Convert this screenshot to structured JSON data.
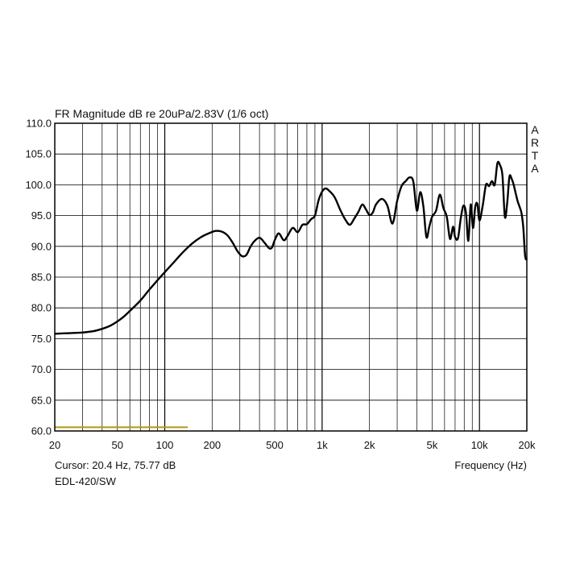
{
  "chart_data": {
    "type": "line",
    "title": "FR Magnitude dB re 20uPa/2.83V (1/6 oct)",
    "xlabel": "Frequency (Hz)",
    "ylabel": "",
    "x_scale": "log",
    "xlim": [
      20,
      20000
    ],
    "ylim": [
      60,
      110
    ],
    "grid": true,
    "y_ticks": [
      "110.0",
      "105.0",
      "100.0",
      "95.0",
      "90.0",
      "85.0",
      "80.0",
      "75.0",
      "70.0",
      "65.0",
      "60.0"
    ],
    "x_tick_labels": [
      {
        "value": 20,
        "label": "20"
      },
      {
        "value": 50,
        "label": "50"
      },
      {
        "value": 100,
        "label": "100"
      },
      {
        "value": 200,
        "label": "200"
      },
      {
        "value": 500,
        "label": "500"
      },
      {
        "value": 1000,
        "label": "1k"
      },
      {
        "value": 2000,
        "label": "2k"
      },
      {
        "value": 5000,
        "label": "5k"
      },
      {
        "value": 10000,
        "label": "10k"
      },
      {
        "value": 20000,
        "label": "20k"
      }
    ],
    "series": [
      {
        "color": "#000000",
        "x": [
          20,
          25,
          30,
          35,
          40,
          45,
          50,
          55,
          60,
          70,
          80,
          90,
          100,
          115,
          130,
          150,
          170,
          190,
          210,
          230,
          250,
          270,
          290,
          310,
          330,
          350,
          370,
          400,
          430,
          460,
          480,
          500,
          530,
          570,
          600,
          650,
          700,
          750,
          800,
          850,
          900,
          950,
          1000,
          1050,
          1100,
          1200,
          1300,
          1400,
          1500,
          1600,
          1700,
          1800,
          1900,
          2000,
          2100,
          2200,
          2400,
          2600,
          2800,
          3000,
          3200,
          3400,
          3600,
          3800,
          4000,
          4200,
          4400,
          4600,
          4800,
          5000,
          5300,
          5600,
          5900,
          6200,
          6500,
          6800,
          7000,
          7300,
          7600,
          7900,
          8200,
          8500,
          8800,
          9100,
          9400,
          9700,
          10000,
          10500,
          11000,
          11500,
          12000,
          12500,
          13000,
          13500,
          14000,
          14500,
          15000,
          15500,
          16000,
          16500,
          17000,
          17500,
          18000,
          18500,
          19000,
          19500,
          20000
        ],
        "values": [
          75.8,
          75.9,
          76.0,
          76.2,
          76.6,
          77.1,
          77.8,
          78.6,
          79.5,
          81.2,
          83.0,
          84.5,
          85.8,
          87.5,
          89.0,
          90.5,
          91.5,
          92.1,
          92.5,
          92.4,
          91.8,
          90.6,
          89.2,
          88.4,
          88.6,
          89.9,
          90.8,
          91.4,
          90.6,
          89.7,
          89.8,
          91.0,
          92.1,
          91.0,
          91.6,
          93.0,
          92.3,
          93.5,
          93.6,
          94.4,
          95.0,
          97.5,
          98.9,
          99.4,
          99.1,
          98.0,
          96.0,
          94.4,
          93.5,
          94.5,
          95.6,
          96.8,
          96.0,
          95.1,
          95.5,
          96.8,
          97.7,
          96.6,
          93.7,
          97.4,
          99.8,
          100.6,
          101.2,
          100.5,
          95.8,
          98.8,
          96.5,
          91.5,
          93.2,
          94.8,
          95.8,
          98.4,
          96.2,
          94.8,
          91.2,
          93.2,
          91.5,
          91.3,
          94.5,
          96.6,
          95.5,
          90.9,
          96.8,
          93.0,
          96.4,
          96.9,
          94.2,
          96.7,
          100.0,
          99.8,
          100.6,
          100.0,
          103.5,
          103.2,
          101.5,
          94.8,
          97.0,
          101.3,
          101.0,
          100.0,
          98.6,
          97.3,
          96.4,
          95.4,
          93.0,
          88.5,
          87.8
        ]
      }
    ],
    "reference_line": {
      "color": "#b59a00",
      "x": [
        20,
        140
      ],
      "y": [
        60.6,
        60.6
      ]
    }
  },
  "footer": {
    "cursor": "Cursor: 20.4 Hz, 75.77 dB",
    "model": "EDL-420/SW",
    "brand": [
      "A",
      "R",
      "T",
      "A"
    ]
  }
}
